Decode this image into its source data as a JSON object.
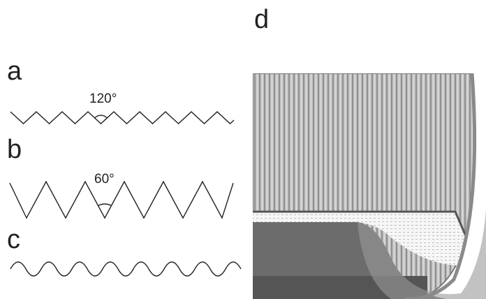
{
  "panels": [
    {
      "label": "a",
      "angle": "120°"
    },
    {
      "label": "b",
      "angle": "60°"
    },
    {
      "label": "c"
    },
    {
      "label": "d"
    }
  ]
}
